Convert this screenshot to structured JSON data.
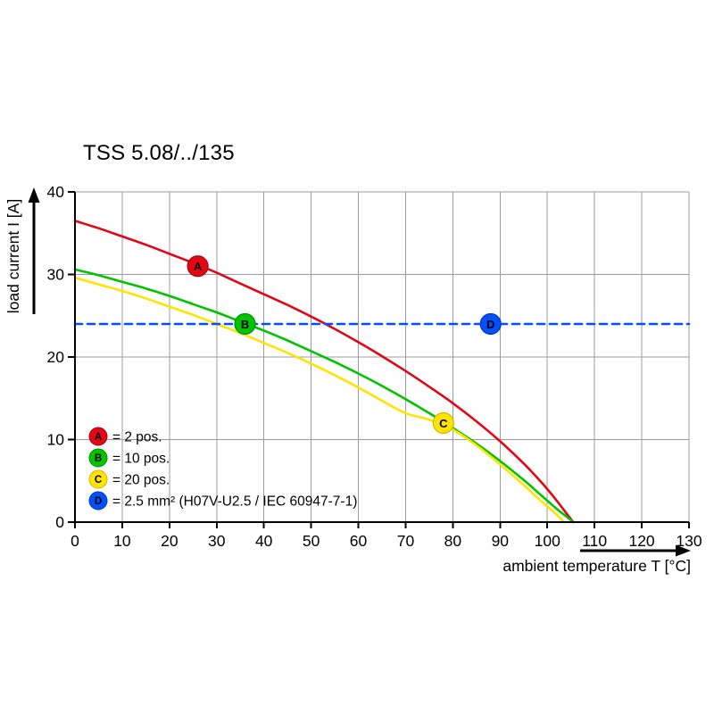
{
  "page": {
    "background": "#ffffff"
  },
  "chart_data": {
    "type": "line",
    "title": "TSS 5.08/../135",
    "xlabel": "ambient temperature T [°C]",
    "ylabel": "load current I [A]",
    "xlim": [
      0,
      130
    ],
    "ylim": [
      0,
      40
    ],
    "x_ticks": [
      0,
      10,
      20,
      30,
      40,
      50,
      60,
      70,
      80,
      90,
      100,
      110,
      120,
      130
    ],
    "y_ticks": [
      0,
      10,
      20,
      30,
      40
    ],
    "grid": true,
    "grid_color": "#9c9c9c",
    "axis_color": "#000000",
    "legend_position": "bottom-left-inside",
    "series": [
      {
        "key": "A",
        "label": "2 pos.",
        "color": "#e30613",
        "edge": "#a50410",
        "dashed": false,
        "marker": {
          "x": 26,
          "y": 31
        },
        "points": [
          [
            0,
            36.5
          ],
          [
            5,
            35.6
          ],
          [
            10,
            34.6
          ],
          [
            15,
            33.6
          ],
          [
            20,
            32.5
          ],
          [
            25,
            31.4
          ],
          [
            30,
            30.2
          ],
          [
            35,
            28.9
          ],
          [
            40,
            27.6
          ],
          [
            45,
            26.3
          ],
          [
            50,
            24.9
          ],
          [
            55,
            23.4
          ],
          [
            60,
            21.8
          ],
          [
            65,
            20.1
          ],
          [
            70,
            18.3
          ],
          [
            75,
            16.4
          ],
          [
            80,
            14.4
          ],
          [
            85,
            12.2
          ],
          [
            90,
            9.8
          ],
          [
            95,
            7.1
          ],
          [
            98,
            5.3
          ],
          [
            100,
            4.0
          ],
          [
            102,
            2.6
          ],
          [
            104,
            1.1
          ],
          [
            105.5,
            0
          ]
        ]
      },
      {
        "key": "B",
        "label": "10 pos.",
        "color": "#00c400",
        "edge": "#008f00",
        "dashed": false,
        "marker": {
          "x": 36,
          "y": 24
        },
        "points": [
          [
            0,
            30.6
          ],
          [
            5,
            29.9
          ],
          [
            10,
            29.1
          ],
          [
            15,
            28.3
          ],
          [
            20,
            27.4
          ],
          [
            25,
            26.4
          ],
          [
            30,
            25.4
          ],
          [
            35,
            24.3
          ],
          [
            40,
            23.2
          ],
          [
            45,
            22.0
          ],
          [
            50,
            20.7
          ],
          [
            55,
            19.4
          ],
          [
            60,
            18.0
          ],
          [
            65,
            16.5
          ],
          [
            70,
            14.9
          ],
          [
            75,
            13.2
          ],
          [
            80,
            11.4
          ],
          [
            85,
            9.5
          ],
          [
            90,
            7.4
          ],
          [
            95,
            5.1
          ],
          [
            98,
            3.6
          ],
          [
            100,
            2.6
          ],
          [
            102,
            1.6
          ],
          [
            104,
            0.7
          ],
          [
            105.5,
            0
          ]
        ]
      },
      {
        "key": "C",
        "label": "20 pos.",
        "color": "#ffe400",
        "edge": "#cdb700",
        "dashed": false,
        "marker": {
          "x": 78,
          "y": 12
        },
        "points": [
          [
            0,
            29.6
          ],
          [
            5,
            28.8
          ],
          [
            10,
            28.0
          ],
          [
            15,
            27.1
          ],
          [
            20,
            26.1
          ],
          [
            25,
            25.1
          ],
          [
            30,
            24.0
          ],
          [
            35,
            22.9
          ],
          [
            40,
            21.7
          ],
          [
            45,
            20.5
          ],
          [
            50,
            19.2
          ],
          [
            55,
            17.8
          ],
          [
            60,
            16.3
          ],
          [
            65,
            14.7
          ],
          [
            70,
            13.2
          ],
          [
            75,
            12.4
          ],
          [
            80,
            11.2
          ],
          [
            85,
            9.3
          ],
          [
            90,
            7.0
          ],
          [
            95,
            4.5
          ],
          [
            98,
            2.9
          ],
          [
            100,
            1.9
          ],
          [
            102,
            0.9
          ],
          [
            103.5,
            0
          ]
        ]
      },
      {
        "key": "D",
        "label": "2.5 mm² (H07V-U2.5 / IEC 60947-7-1)",
        "color": "#0050ff",
        "edge": "#0038b8",
        "dashed": true,
        "marker": {
          "x": 88,
          "y": 24
        },
        "points": [
          [
            0,
            24
          ],
          [
            130,
            24
          ]
        ]
      }
    ],
    "legend": [
      {
        "key": "A",
        "text": "= 2 pos."
      },
      {
        "key": "B",
        "text": "= 10 pos."
      },
      {
        "key": "C",
        "text": "= 20 pos."
      },
      {
        "key": "D",
        "text": "= 2.5 mm² (H07V-U2.5 / IEC 60947-7-1)"
      }
    ]
  }
}
